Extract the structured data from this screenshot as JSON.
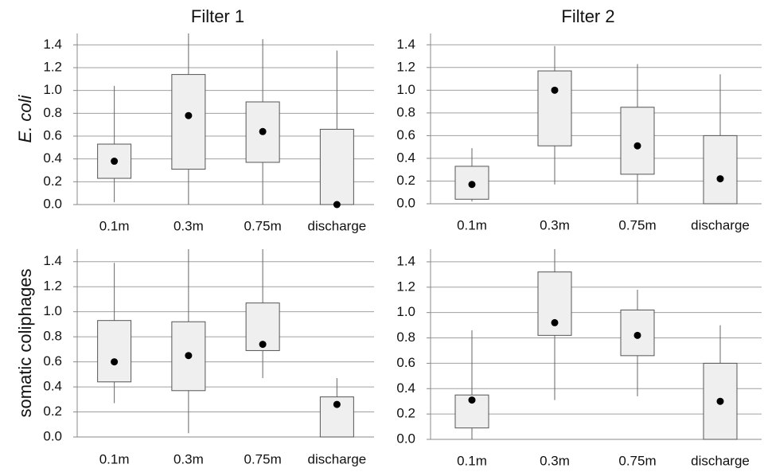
{
  "chart_data": [
    {
      "type": "box",
      "title": "Filter 1",
      "ylabel": "E. coli",
      "categories": [
        "0.1m",
        "0.3m",
        "0.75m",
        "discharge"
      ],
      "min": [
        0.02,
        0,
        0,
        0
      ],
      "q1": [
        0.23,
        0.31,
        0.37,
        0
      ],
      "q3": [
        0.53,
        1.14,
        0.9,
        0.66
      ],
      "max": [
        1.04,
        1.5,
        1.45,
        1.35
      ],
      "marker": [
        0.38,
        0.78,
        0.64,
        0
      ],
      "ylim": [
        0,
        1.5
      ],
      "yticks": [
        {
          "value": 0,
          "label": "0.0"
        },
        0.2,
        0.4,
        0.6,
        0.8,
        {
          "value": 1,
          "label": "1.0"
        },
        1.2,
        1.4
      ],
      "grid": true
    },
    {
      "type": "box",
      "title": "Filter 2",
      "categories": [
        "0.1m",
        "0.3m",
        "0.75m",
        "discharge"
      ],
      "min": [
        0.02,
        0.17,
        0,
        0
      ],
      "q1": [
        0.04,
        0.51,
        0.26,
        0
      ],
      "q3": [
        0.33,
        1.17,
        0.85,
        0.6
      ],
      "max": [
        0.49,
        1.39,
        1.23,
        1.14
      ],
      "marker": [
        0.17,
        1.0,
        0.51,
        0.22
      ],
      "ylim": [
        0,
        1.5
      ],
      "yticks": [
        {
          "value": 0,
          "label": "0.0"
        },
        0.2,
        0.4,
        0.6,
        0.8,
        {
          "value": 1,
          "label": "1.0"
        },
        1.2,
        1.4
      ],
      "grid": true
    },
    {
      "type": "box",
      "ylabel": "somatic coliphages",
      "categories": [
        "0.1m",
        "0.3m",
        "0.75m",
        "discharge"
      ],
      "min": [
        0.27,
        0.03,
        0.47,
        0
      ],
      "q1": [
        0.44,
        0.37,
        0.69,
        0
      ],
      "q3": [
        0.93,
        0.92,
        1.07,
        0.32
      ],
      "max": [
        1.39,
        1.5,
        1.5,
        0.47
      ],
      "marker": [
        0.6,
        0.65,
        0.74,
        0.26
      ],
      "ylim": [
        0,
        1.5
      ],
      "yticks": [
        {
          "value": 0,
          "label": "0.0"
        },
        0.2,
        0.4,
        0.6,
        0.8,
        {
          "value": 1,
          "label": "1.0"
        },
        1.2,
        1.4
      ],
      "grid": true
    },
    {
      "type": "box",
      "categories": [
        "0.1m",
        "0.3m",
        "0.75m",
        "discharge"
      ],
      "min": [
        0,
        0.31,
        0.34,
        0
      ],
      "q1": [
        0.09,
        0.82,
        0.66,
        0
      ],
      "q3": [
        0.35,
        1.32,
        1.02,
        0.6
      ],
      "max": [
        0.86,
        1.5,
        1.18,
        0.9
      ],
      "marker": [
        0.31,
        0.92,
        0.82,
        0.3
      ],
      "ylim": [
        0,
        1.5
      ],
      "yticks": [
        {
          "value": 0,
          "label": "0.0"
        },
        0.2,
        0.4,
        0.6,
        0.8,
        {
          "value": 1,
          "label": "1.0"
        },
        1.2,
        1.4
      ],
      "grid": true
    }
  ]
}
